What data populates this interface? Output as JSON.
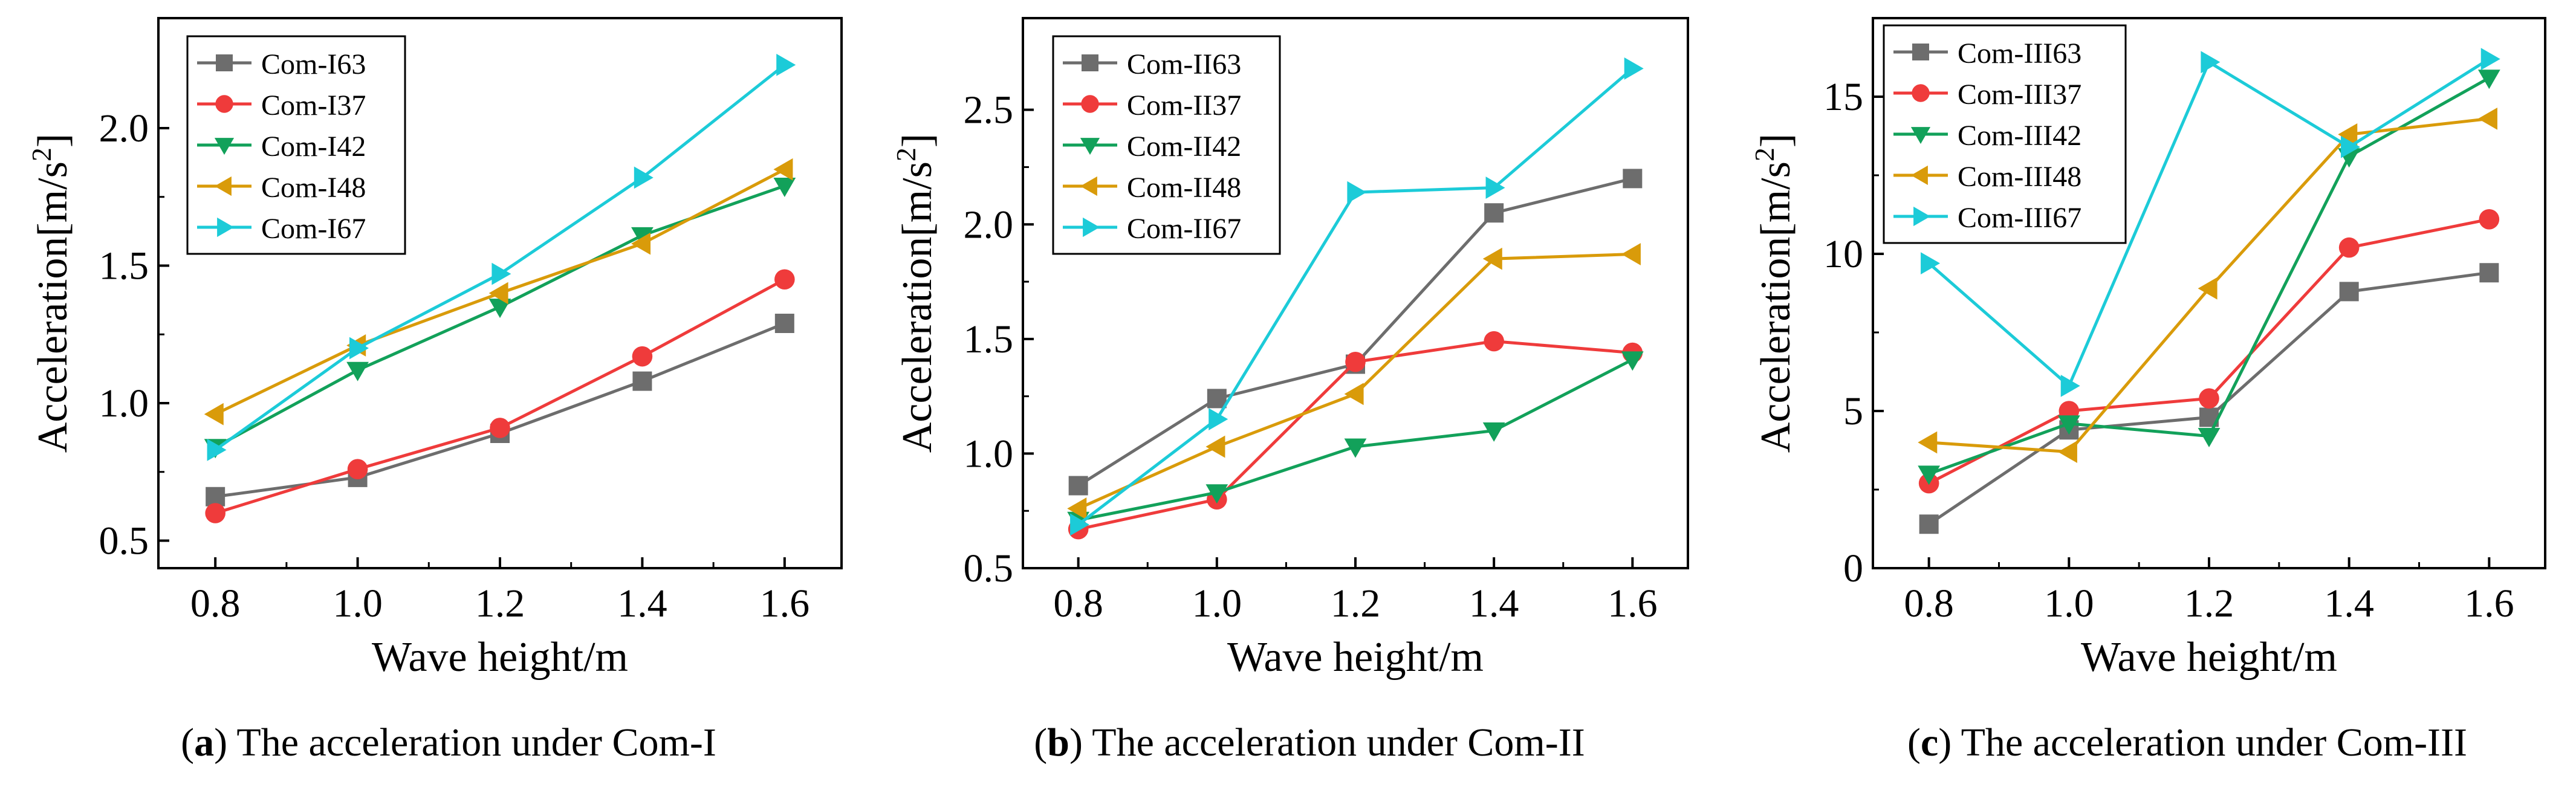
{
  "colors": {
    "gray": "#6d6d6d",
    "red": "#ef3b3b",
    "green": "#12a15a",
    "orange": "#d99b0a",
    "cyan": "#1ccbd8"
  },
  "chart_data": [
    {
      "type": "line",
      "panel_label": "a",
      "caption": " The acceleration under Com-I",
      "xlabel": "Wave height/m",
      "ylabel_main": "Acceleration[m/s",
      "ylabel_sup": "2",
      "ylabel_end": "]",
      "x": [
        0.8,
        1.0,
        1.2,
        1.4,
        1.6
      ],
      "x_ticks": [
        0.8,
        1.0,
        1.2,
        1.4,
        1.6
      ],
      "x_tick_labels": [
        "0.8",
        "1.0",
        "1.2",
        "1.4",
        "1.6"
      ],
      "xlim": [
        0.72,
        1.68
      ],
      "y_ticks": [
        0.5,
        1.0,
        1.5,
        2.0
      ],
      "y_tick_labels": [
        "0.5",
        "1.0",
        "1.5",
        "2.0"
      ],
      "ylim": [
        0.4,
        2.4
      ],
      "legend_position": "top-left",
      "series": [
        {
          "name": "Com-I63",
          "marker": "square",
          "color": "#6d6d6d",
          "values": [
            0.66,
            0.73,
            0.89,
            1.08,
            1.29
          ]
        },
        {
          "name": "Com-I37",
          "marker": "circle",
          "color": "#ef3b3b",
          "values": [
            0.6,
            0.76,
            0.91,
            1.17,
            1.45
          ]
        },
        {
          "name": "Com-I42",
          "marker": "triangle-down",
          "color": "#12a15a",
          "values": [
            0.84,
            1.12,
            1.35,
            1.61,
            1.79
          ]
        },
        {
          "name": "Com-I48",
          "marker": "triangle-left",
          "color": "#d99b0a",
          "values": [
            0.96,
            1.21,
            1.4,
            1.58,
            1.85
          ]
        },
        {
          "name": "Com-I67",
          "marker": "triangle-right",
          "color": "#1ccbd8",
          "values": [
            0.83,
            1.2,
            1.47,
            1.82,
            2.23
          ]
        }
      ]
    },
    {
      "type": "line",
      "panel_label": "b",
      "caption": " The acceleration under Com-II",
      "xlabel": "Wave height/m",
      "ylabel_main": "Acceleration[m/s",
      "ylabel_sup": "2",
      "ylabel_end": "]",
      "x": [
        0.8,
        1.0,
        1.2,
        1.4,
        1.6
      ],
      "x_ticks": [
        0.8,
        1.0,
        1.2,
        1.4,
        1.6
      ],
      "x_tick_labels": [
        "0.8",
        "1.0",
        "1.2",
        "1.4",
        "1.6"
      ],
      "xlim": [
        0.72,
        1.68
      ],
      "y_ticks": [
        0.5,
        1.0,
        1.5,
        2.0,
        2.5
      ],
      "y_tick_labels": [
        "0.5",
        "1.0",
        "1.5",
        "2.0",
        "2.5"
      ],
      "ylim": [
        0.5,
        2.9
      ],
      "legend_position": "top-left",
      "series": [
        {
          "name": "Com-II63",
          "marker": "square",
          "color": "#6d6d6d",
          "values": [
            0.86,
            1.24,
            1.39,
            2.05,
            2.2
          ]
        },
        {
          "name": "Com-II37",
          "marker": "circle",
          "color": "#ef3b3b",
          "values": [
            0.67,
            0.8,
            1.4,
            1.49,
            1.44
          ]
        },
        {
          "name": "Com-II42",
          "marker": "triangle-down",
          "color": "#12a15a",
          "values": [
            0.71,
            0.83,
            1.03,
            1.1,
            1.41
          ]
        },
        {
          "name": "Com-II48",
          "marker": "triangle-left",
          "color": "#d99b0a",
          "values": [
            0.76,
            1.03,
            1.26,
            1.85,
            1.87
          ]
        },
        {
          "name": "Com-II67",
          "marker": "triangle-right",
          "color": "#1ccbd8",
          "values": [
            0.69,
            1.15,
            2.14,
            2.16,
            2.68
          ]
        }
      ]
    },
    {
      "type": "line",
      "panel_label": "c",
      "caption": " The acceleration under Com-III",
      "xlabel": "Wave height/m",
      "ylabel_main": "Acceleration[m/s",
      "ylabel_sup": "2",
      "ylabel_end": "]",
      "x": [
        0.8,
        1.0,
        1.2,
        1.4,
        1.6
      ],
      "x_ticks": [
        0.8,
        1.0,
        1.2,
        1.4,
        1.6
      ],
      "x_tick_labels": [
        "0.8",
        "1.0",
        "1.2",
        "1.4",
        "1.6"
      ],
      "xlim": [
        0.72,
        1.68
      ],
      "y_ticks": [
        0,
        5,
        10,
        15
      ],
      "y_tick_labels": [
        "0",
        "5",
        "10",
        "15"
      ],
      "ylim": [
        0,
        17.5
      ],
      "legend_position": "top-left",
      "series": [
        {
          "name": "Com-III63",
          "marker": "square",
          "color": "#6d6d6d",
          "values": [
            1.4,
            4.4,
            4.8,
            8.8,
            9.4
          ]
        },
        {
          "name": "Com-III37",
          "marker": "circle",
          "color": "#ef3b3b",
          "values": [
            2.7,
            5.0,
            5.4,
            10.2,
            11.1
          ]
        },
        {
          "name": "Com-III42",
          "marker": "triangle-down",
          "color": "#12a15a",
          "values": [
            3.0,
            4.6,
            4.2,
            13.1,
            15.6
          ]
        },
        {
          "name": "Com-III48",
          "marker": "triangle-left",
          "color": "#d99b0a",
          "values": [
            4.0,
            3.7,
            8.9,
            13.8,
            14.3
          ]
        },
        {
          "name": "Com-III67",
          "marker": "triangle-right",
          "color": "#1ccbd8",
          "values": [
            9.7,
            5.8,
            16.1,
            13.4,
            16.2
          ]
        }
      ]
    }
  ]
}
